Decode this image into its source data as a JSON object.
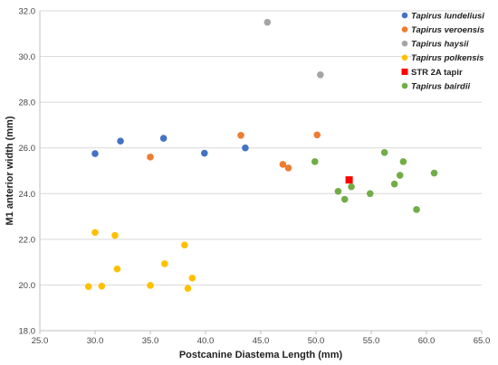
{
  "chart_data": {
    "type": "scatter",
    "title": "",
    "xlabel": "Postcanine Diastema Length (mm)",
    "ylabel": "M1 anterior width (mm)",
    "xlim": [
      25.0,
      65.0
    ],
    "ylim": [
      18.0,
      32.0
    ],
    "x_ticks": [
      "25.0",
      "30.0",
      "35.0",
      "40.0",
      "45.0",
      "50.0",
      "55.0",
      "60.0",
      "65.0"
    ],
    "y_ticks": [
      "18.0",
      "20.0",
      "22.0",
      "24.0",
      "26.0",
      "28.0",
      "30.0",
      "32.0"
    ],
    "grid": "horizontal",
    "legend_position": "top-right",
    "series": [
      {
        "name": "Tapirus lundeliusi",
        "italic": true,
        "color": "#4472c4",
        "marker": "circle",
        "points": [
          [
            30.0,
            25.75
          ],
          [
            32.3,
            26.3
          ],
          [
            36.2,
            26.42
          ],
          [
            39.9,
            25.77
          ],
          [
            43.6,
            26.0
          ]
        ]
      },
      {
        "name": "Tapirus veroensis",
        "italic": true,
        "color": "#ed7d31",
        "marker": "circle",
        "points": [
          [
            35.0,
            25.6
          ],
          [
            43.2,
            26.55
          ],
          [
            47.0,
            25.28
          ],
          [
            47.5,
            25.12
          ],
          [
            50.1,
            26.57
          ]
        ]
      },
      {
        "name": "Tapirus haysii",
        "italic": true,
        "color": "#a5a5a5",
        "marker": "circle",
        "points": [
          [
            45.6,
            31.5
          ],
          [
            50.4,
            29.2
          ]
        ]
      },
      {
        "name": "Tapirus polkensis",
        "italic": true,
        "color": "#ffc000",
        "marker": "circle",
        "points": [
          [
            29.4,
            19.93
          ],
          [
            30.0,
            22.3
          ],
          [
            30.6,
            19.95
          ],
          [
            31.8,
            22.17
          ],
          [
            32.0,
            20.7
          ],
          [
            35.0,
            19.98
          ],
          [
            36.3,
            20.93
          ],
          [
            38.1,
            21.75
          ],
          [
            38.4,
            19.85
          ],
          [
            38.8,
            20.3
          ]
        ]
      },
      {
        "name": "STR 2A tapir",
        "italic": false,
        "color": "#ff0000",
        "marker": "square",
        "points": [
          [
            53.0,
            24.6
          ]
        ]
      },
      {
        "name": "Tapirus bairdii",
        "italic": true,
        "color": "#70ad47",
        "marker": "circle",
        "points": [
          [
            49.9,
            25.4
          ],
          [
            52.0,
            24.1
          ],
          [
            52.6,
            23.75
          ],
          [
            53.2,
            24.3
          ],
          [
            54.9,
            24.0
          ],
          [
            56.2,
            25.8
          ],
          [
            57.1,
            24.42
          ],
          [
            57.6,
            24.8
          ],
          [
            57.9,
            25.4
          ],
          [
            59.1,
            23.3
          ],
          [
            60.7,
            24.9
          ]
        ]
      }
    ]
  }
}
